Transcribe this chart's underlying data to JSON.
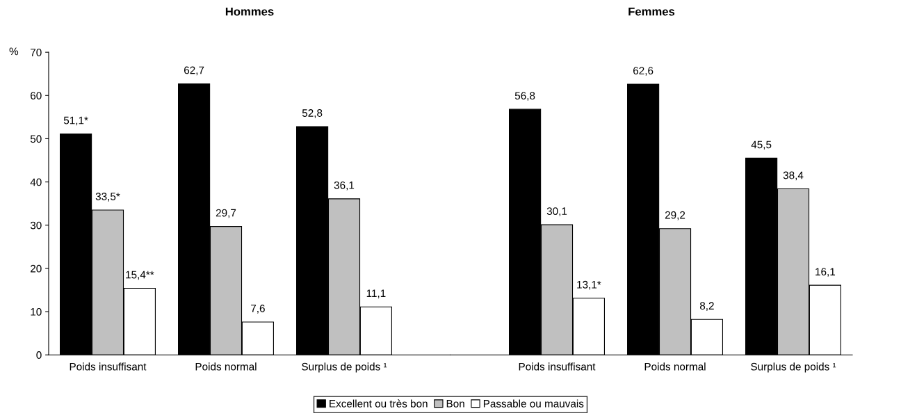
{
  "chart_data": [
    {
      "type": "bar",
      "title": "Hommes",
      "ylabel": "%",
      "categories": [
        "Poids insuffisant",
        "Poids normal",
        "Surplus de poids ¹"
      ],
      "ylim": [
        0,
        70
      ],
      "yticks": [
        0,
        10,
        20,
        30,
        40,
        50,
        60,
        70
      ],
      "grid": false,
      "legend": "bottom",
      "series": [
        {
          "name": "Excellent ou très bon",
          "color": "#000000",
          "values": [
            51.1,
            62.7,
            52.8
          ],
          "value_labels": [
            "51,1*",
            "62,7",
            "52,8"
          ]
        },
        {
          "name": "Bon",
          "color": "#c0c0c0",
          "values": [
            33.5,
            29.7,
            36.1
          ],
          "value_labels": [
            "33,5*",
            "29,7",
            "36,1"
          ]
        },
        {
          "name": "Passable ou mauvais",
          "color": "#ffffff",
          "values": [
            15.4,
            7.6,
            11.1
          ],
          "value_labels": [
            "15,4**",
            "7,6",
            "11,1"
          ]
        }
      ]
    },
    {
      "type": "bar",
      "title": "Femmes",
      "categories": [
        "Poids insuffisant",
        "Poids normal",
        "Surplus de poids ¹"
      ],
      "ylim": [
        0,
        70
      ],
      "tick_labels": "x",
      "grid": false,
      "legend": "bottom",
      "series": [
        {
          "name": "Excellent ou très bon",
          "color": "#000000",
          "values": [
            56.8,
            62.6,
            45.5
          ],
          "value_labels": [
            "56,8",
            "62,6",
            "45,5"
          ]
        },
        {
          "name": "Bon",
          "color": "#c0c0c0",
          "values": [
            30.1,
            29.2,
            38.4
          ],
          "value_labels": [
            "30,1",
            "29,2",
            "38,4"
          ]
        },
        {
          "name": "Passable ou mauvais",
          "color": "#ffffff",
          "values": [
            13.1,
            8.2,
            16.1
          ],
          "value_labels": [
            "13,1*",
            "8,2",
            "16,1"
          ]
        }
      ]
    }
  ]
}
